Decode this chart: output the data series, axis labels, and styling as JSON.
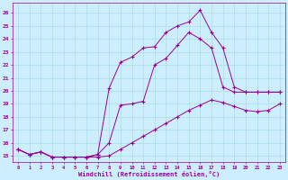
{
  "xlabel": "Windchill (Refroidissement éolien,°C)",
  "background_color": "#cceeff",
  "grid_color": "#aadddd",
  "line_color": "#990099",
  "x_ticks": [
    0,
    1,
    2,
    3,
    4,
    5,
    6,
    7,
    8,
    9,
    10,
    11,
    12,
    13,
    14,
    15,
    16,
    17,
    18,
    19,
    20,
    21,
    22,
    23
  ],
  "y_ticks": [
    15,
    16,
    17,
    18,
    19,
    20,
    21,
    22,
    23,
    24,
    25,
    26
  ],
  "ylim": [
    14.5,
    26.8
  ],
  "xlim": [
    -0.5,
    23.5
  ],
  "line1_x": [
    0,
    1,
    2,
    3,
    4,
    5,
    6,
    7,
    8,
    9,
    10,
    11,
    12,
    13,
    14,
    15,
    16,
    17,
    18,
    19,
    20,
    21,
    22,
    23
  ],
  "line1_y": [
    15.5,
    15.1,
    15.3,
    14.9,
    14.9,
    14.9,
    14.9,
    15.1,
    20.2,
    22.2,
    22.6,
    23.3,
    23.4,
    24.5,
    25.0,
    25.3,
    26.2,
    24.5,
    23.3,
    20.3,
    19.9,
    19.9,
    19.9,
    19.9
  ],
  "line2_x": [
    0,
    1,
    2,
    3,
    4,
    5,
    6,
    7,
    8,
    9,
    10,
    11,
    12,
    13,
    14,
    15,
    16,
    17,
    18,
    19,
    20,
    21,
    22,
    23
  ],
  "line2_y": [
    15.5,
    15.1,
    15.3,
    14.9,
    14.9,
    14.9,
    14.9,
    15.1,
    16.0,
    18.9,
    19.0,
    19.2,
    22.0,
    22.5,
    23.5,
    24.5,
    24.0,
    23.3,
    20.3,
    19.9,
    19.9,
    19.9,
    19.9,
    19.9
  ],
  "line3_x": [
    0,
    1,
    2,
    3,
    4,
    5,
    6,
    7,
    8,
    9,
    10,
    11,
    12,
    13,
    14,
    15,
    16,
    17,
    18,
    19,
    20,
    21,
    22,
    23
  ],
  "line3_y": [
    15.5,
    15.1,
    15.3,
    14.9,
    14.9,
    14.9,
    14.9,
    14.9,
    15.0,
    15.5,
    16.0,
    16.5,
    17.0,
    17.5,
    18.0,
    18.5,
    18.9,
    19.3,
    19.1,
    18.8,
    18.5,
    18.4,
    18.5,
    19.0
  ]
}
